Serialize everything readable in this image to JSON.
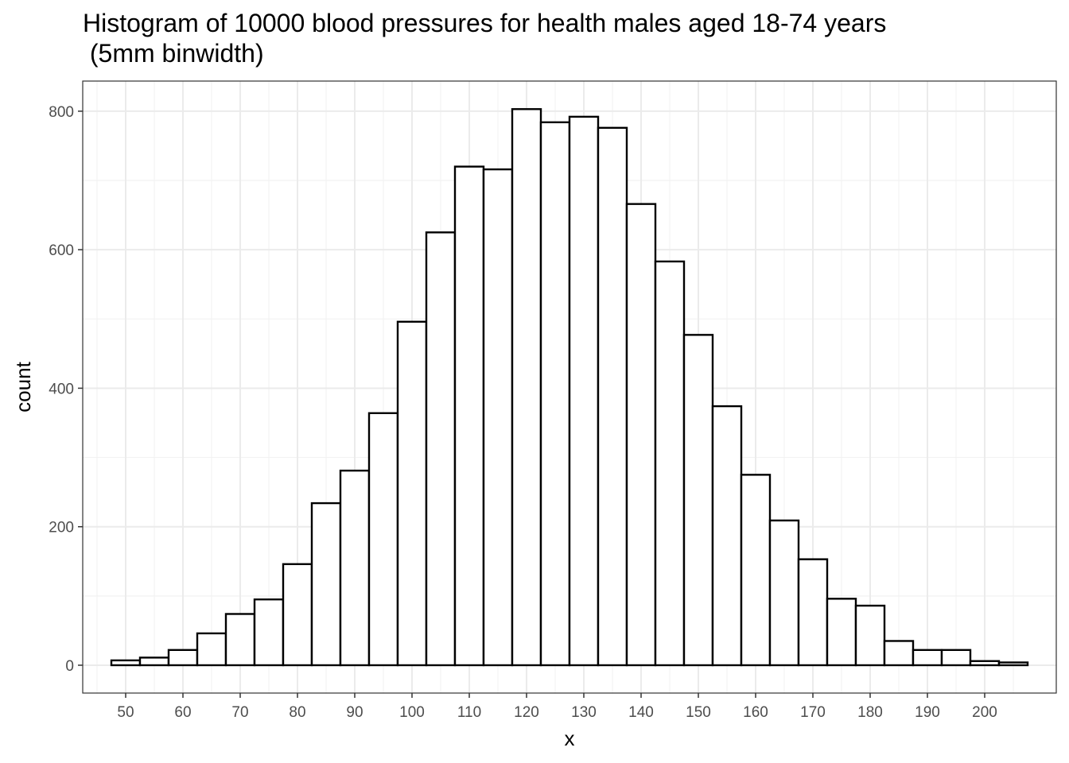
{
  "chart_data": {
    "type": "bar",
    "title": "Histogram of 10000 blood pressures for health males aged 18-74 years\n (5mm binwidth)",
    "xlabel": "x",
    "ylabel": "count",
    "binwidth": 5,
    "bins": [
      {
        "x": 50,
        "count": 7
      },
      {
        "x": 55,
        "count": 11
      },
      {
        "x": 60,
        "count": 22
      },
      {
        "x": 65,
        "count": 46
      },
      {
        "x": 70,
        "count": 74
      },
      {
        "x": 75,
        "count": 95
      },
      {
        "x": 80,
        "count": 146
      },
      {
        "x": 85,
        "count": 234
      },
      {
        "x": 90,
        "count": 281
      },
      {
        "x": 95,
        "count": 364
      },
      {
        "x": 100,
        "count": 496
      },
      {
        "x": 105,
        "count": 625
      },
      {
        "x": 110,
        "count": 720
      },
      {
        "x": 115,
        "count": 716
      },
      {
        "x": 120,
        "count": 803
      },
      {
        "x": 125,
        "count": 784
      },
      {
        "x": 130,
        "count": 792
      },
      {
        "x": 135,
        "count": 776
      },
      {
        "x": 140,
        "count": 666
      },
      {
        "x": 145,
        "count": 583
      },
      {
        "x": 150,
        "count": 477
      },
      {
        "x": 155,
        "count": 374
      },
      {
        "x": 160,
        "count": 275
      },
      {
        "x": 165,
        "count": 209
      },
      {
        "x": 170,
        "count": 153
      },
      {
        "x": 175,
        "count": 96
      },
      {
        "x": 180,
        "count": 86
      },
      {
        "x": 185,
        "count": 35
      },
      {
        "x": 190,
        "count": 22
      },
      {
        "x": 195,
        "count": 22
      },
      {
        "x": 200,
        "count": 6
      },
      {
        "x": 205,
        "count": 4
      }
    ],
    "x_ticks": [
      "50",
      "60",
      "70",
      "80",
      "90",
      "100",
      "110",
      "120",
      "130",
      "140",
      "150",
      "160",
      "170",
      "180",
      "190",
      "200"
    ],
    "y_ticks": [
      "0",
      "200",
      "400",
      "600",
      "800"
    ],
    "xlim": [
      42.5,
      212.5
    ],
    "ylim": [
      -40.2,
      843.5
    ],
    "bar_fill": "#ffffff",
    "bar_stroke": "#000000",
    "grid": true,
    "theme": "bw"
  }
}
